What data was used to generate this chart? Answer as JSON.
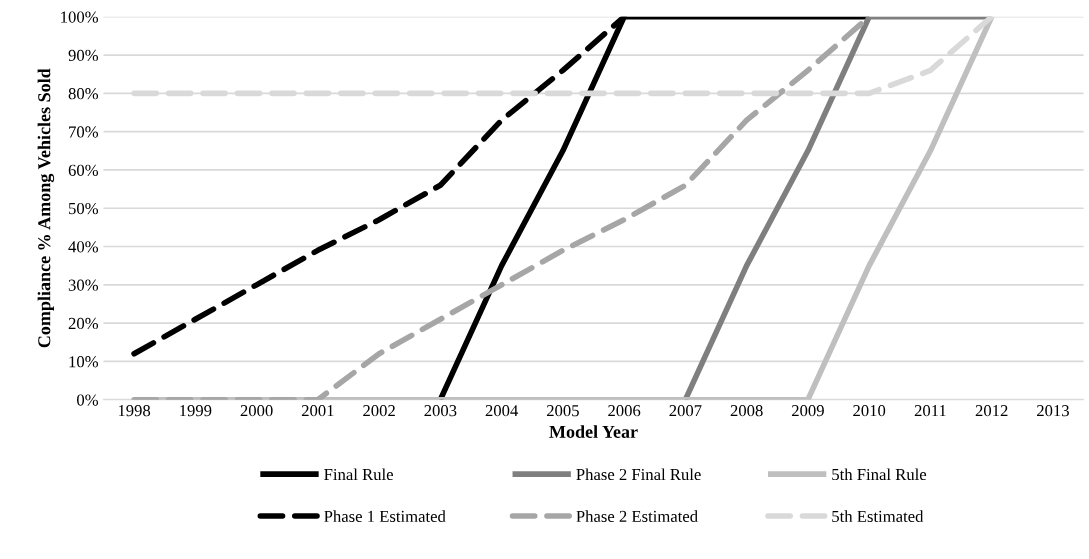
{
  "chart_data": {
    "type": "line",
    "xlabel": "Model Year",
    "ylabel": "Compliance % Among Vehicles Sold",
    "categories": [
      "1998",
      "1999",
      "2000",
      "2001",
      "2002",
      "2003",
      "2004",
      "2005",
      "2006",
      "2007",
      "2008",
      "2009",
      "2010",
      "2011",
      "2012",
      "2013"
    ],
    "ylim": [
      0,
      100
    ],
    "yticks": [
      {
        "value": 0,
        "label": "0%"
      },
      {
        "value": 10,
        "label": "10%"
      },
      {
        "value": 20,
        "label": "20%"
      },
      {
        "value": 30,
        "label": "30%"
      },
      {
        "value": 40,
        "label": "40%"
      },
      {
        "value": 50,
        "label": "50%"
      },
      {
        "value": 60,
        "label": "60%"
      },
      {
        "value": 70,
        "label": "70%"
      },
      {
        "value": 80,
        "label": "80%"
      },
      {
        "value": 90,
        "label": "90%"
      },
      {
        "value": 100,
        "label": "100%"
      }
    ],
    "grid": "y",
    "legend": "bottom",
    "marker": "none",
    "series": [
      {
        "name": "Phase 1 Estimated",
        "color": "#000000",
        "line_style": "dashed",
        "values": [
          12,
          21,
          30,
          39,
          47,
          56,
          73,
          86,
          100,
          null,
          null,
          null,
          null,
          null,
          null,
          null
        ]
      },
      {
        "name": "Phase 2 Estimated",
        "color": "#a6a6a6",
        "line_style": "dashed",
        "values": [
          0,
          0,
          0,
          0,
          12,
          21,
          30,
          39,
          47,
          56,
          73,
          86,
          100,
          null,
          null,
          null
        ]
      },
      {
        "name": "5th Estimated",
        "color": "#d9d9d9",
        "line_style": "dashed",
        "values": [
          80,
          80,
          80,
          80,
          80,
          80,
          80,
          80,
          80,
          80,
          80,
          80,
          80,
          86,
          100,
          null
        ]
      },
      {
        "name": "Final Rule",
        "color": "#000000",
        "line_style": "solid",
        "values": [
          null,
          null,
          null,
          null,
          null,
          0,
          35,
          65,
          100,
          100,
          100,
          100,
          100,
          null,
          null,
          null
        ]
      },
      {
        "name": "Phase 2 Final Rule",
        "color": "#7f7f7f",
        "line_style": "solid",
        "values": [
          null,
          null,
          null,
          null,
          null,
          null,
          null,
          null,
          null,
          0,
          35,
          65,
          100,
          100,
          100,
          null
        ]
      },
      {
        "name": "5th Final Rule",
        "color": "#bfbfbf",
        "line_style": "solid",
        "values": [
          0,
          0,
          0,
          0,
          0,
          0,
          0,
          0,
          0,
          0,
          0,
          0,
          35,
          65,
          100,
          null
        ]
      }
    ]
  }
}
